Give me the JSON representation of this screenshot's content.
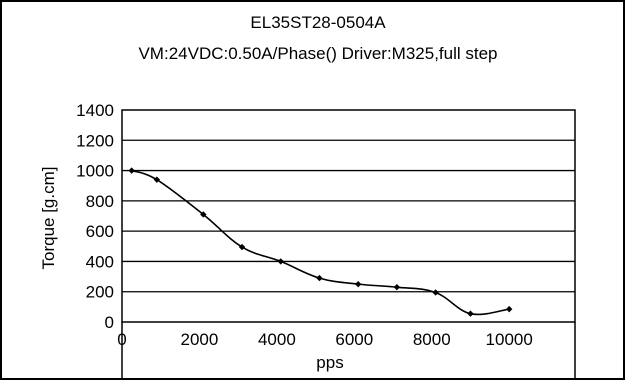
{
  "chart_data": {
    "type": "line",
    "title": "EL35ST28-0504A",
    "subtitle": "VM:24VDC:0.50A/Phase() Driver:M325,full step",
    "xlabel": "pps",
    "ylabel": "Torque [g.cm]",
    "xlim": [
      0,
      11700
    ],
    "ylim": [
      0,
      1400
    ],
    "xticks": [
      "0",
      "2000",
      "4000",
      "6000",
      "8000",
      "10000"
    ],
    "yticks": [
      "0",
      "200",
      "400",
      "600",
      "800",
      "1000",
      "1200",
      "1400"
    ],
    "grid": "horizontal",
    "series": [
      {
        "x": [
          250,
          900,
          2100,
          3100,
          4100,
          5100,
          6100,
          7100,
          8100,
          9000,
          10000
        ],
        "values": [
          1000,
          940,
          710,
          495,
          400,
          290,
          250,
          230,
          195,
          55,
          85
        ],
        "color": "#000000"
      }
    ]
  }
}
